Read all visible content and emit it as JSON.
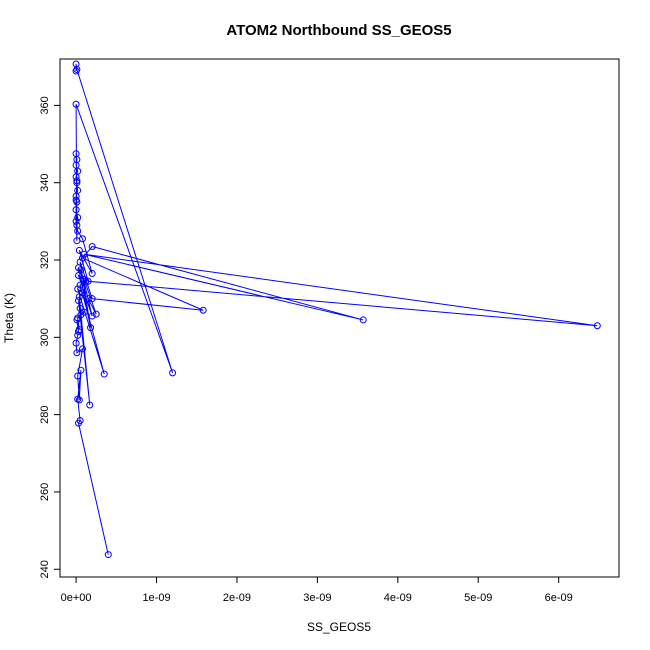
{
  "chart_data": {
    "type": "line",
    "markers": "open-circle",
    "title": "ATOM2 Northbound SS_GEOS5",
    "xlabel": "SS_GEOS5",
    "ylabel": "Theta (K)",
    "xlim": [
      -2e-10,
      6.75e-09
    ],
    "ylim": [
      238,
      372
    ],
    "x_ticks": [
      0,
      1e-09,
      2e-09,
      3e-09,
      4e-09,
      5e-09,
      6e-09
    ],
    "x_tick_labels": [
      "0e+00",
      "1e-09",
      "2e-09",
      "3e-09",
      "4e-09",
      "5e-09",
      "6e-09"
    ],
    "y_ticks": [
      240,
      260,
      280,
      300,
      320,
      340,
      360
    ],
    "y_tick_labels": [
      "240",
      "260",
      "280",
      "300",
      "320",
      "340",
      "360"
    ],
    "series_color": "#0000ff",
    "series": [
      {
        "x": [
          4e-10,
          3e-11,
          5e-11,
          2e-11,
          6e-11,
          4e-11,
          2e-11,
          8e-11,
          1e-11,
          0.0,
          2e-11,
          3e-11,
          1e-11,
          4e-11,
          2e-11,
          6e-11,
          1e-10,
          5e-11,
          3e-11,
          1.7e-10,
          4e-11,
          8e-11,
          2e-11,
          3.5e-10,
          5e-11,
          1.2e-10,
          3e-11,
          2e-10,
          6e-11,
          1.5e-10,
          2.5e-10,
          1e-10,
          3e-11,
          1.8e-10,
          5e-11,
          2e-10,
          1.58e-09,
          8e-11,
          2e-10,
          3.57e-09,
          1e-10,
          6.48e-09,
          1.5e-10,
          4e-11,
          2e-10,
          8e-11,
          2e-11,
          1e-11,
          2e-11,
          0.0,
          1e-11,
          0.0,
          2e-11,
          1e-11,
          0.0,
          2e-11,
          0.0,
          1e-11,
          0.0,
          1e-11,
          0.0,
          0.0,
          1e-11,
          0.0,
          1.2e-09,
          1e-11,
          0.0,
          0.0
        ],
        "y": [
          243.8,
          277.8,
          278.5,
          284,
          291.5,
          283.8,
          290,
          297,
          296,
          298.5,
          300.5,
          301.5,
          304.5,
          302,
          305,
          305.8,
          306.5,
          307.5,
          309.5,
          282.5,
          310.5,
          311.5,
          312.5,
          290.5,
          313.5,
          314.5,
          316,
          305.5,
          317.5,
          310,
          306,
          315,
          318,
          302.5,
          319.5,
          310,
          307,
          320.5,
          323.5,
          304.5,
          321.5,
          303,
          314.5,
          322.5,
          316.5,
          325.5,
          327.5,
          329,
          331,
          333,
          335,
          336.5,
          338,
          340,
          341.5,
          343,
          344.5,
          346,
          347.5,
          340.5,
          335.5,
          330,
          325,
          360.3,
          290.8,
          369.3,
          370.7,
          368.9
        ]
      }
    ]
  }
}
